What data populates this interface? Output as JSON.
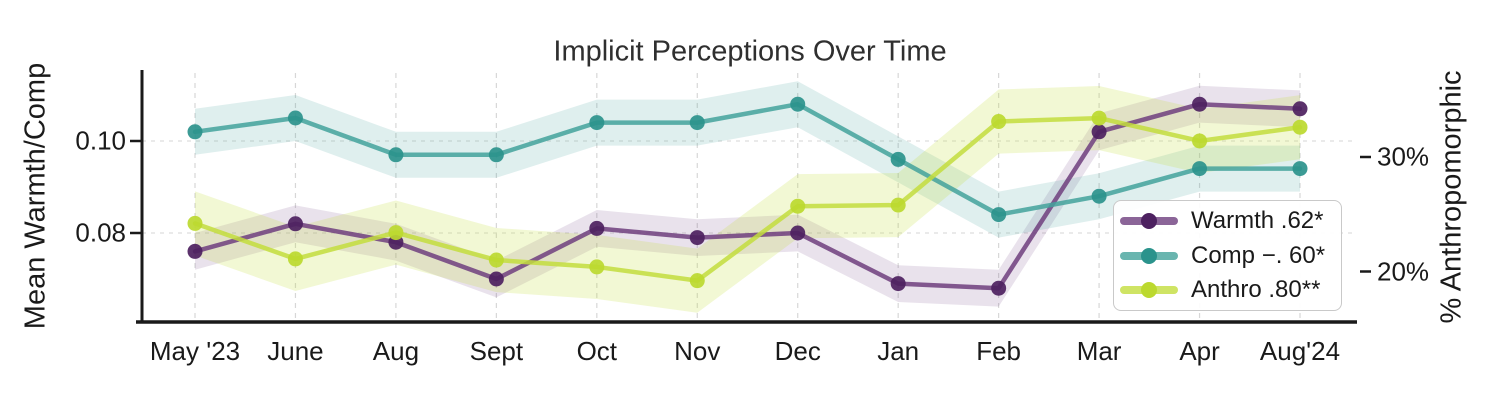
{
  "chart_data": {
    "type": "line",
    "title": "Implicit Perceptions Over Time",
    "categories": [
      "May '23",
      "June",
      "Aug",
      "Sept",
      "Oct",
      "Nov",
      "Dec",
      "Jan",
      "Feb",
      "Mar",
      "Apr",
      "Aug'24"
    ],
    "left_axis": {
      "label": "Mean Warmth/Comp",
      "tick_labels": [
        "0.10",
        "0.08"
      ],
      "tick_values": [
        0.1,
        0.08
      ],
      "range": [
        0.061,
        0.115
      ]
    },
    "right_axis": {
      "label": "% Anthropomorphic",
      "tick_labels": [
        "30%",
        "20%"
      ],
      "tick_values": [
        30,
        20
      ],
      "range": [
        15.6,
        37.6
      ]
    },
    "grid": true,
    "legend_position": "lower-right",
    "series": [
      {
        "name": "Warmth",
        "legend_label": "Warmth .62*",
        "axis": "left",
        "color": "#6e3e7e",
        "marker_color": "#4d2160",
        "band_color": "rgba(110,62,126,0.15)",
        "band_halfwidth": 0.004,
        "values": [
          0.076,
          0.082,
          0.078,
          0.07,
          0.081,
          0.079,
          0.08,
          0.069,
          0.068,
          0.102,
          0.108,
          0.107
        ]
      },
      {
        "name": "Comp",
        "legend_label": "Comp −. 60*",
        "axis": "left",
        "color": "#43a29b",
        "marker_color": "#2b938c",
        "band_color": "rgba(67,162,155,0.17)",
        "band_halfwidth": 0.005,
        "values": [
          0.102,
          0.105,
          0.097,
          0.097,
          0.104,
          0.104,
          0.108,
          0.096,
          0.084,
          0.088,
          0.094,
          0.094
        ]
      },
      {
        "name": "Anthro",
        "legend_label": "Anthro .80**",
        "axis": "right",
        "color": "#c3dd3d",
        "marker_color": "#bcd92f",
        "band_color": "rgba(195,221,61,0.22)",
        "band_halfwidth": 2.8,
        "values": [
          24.2,
          21.1,
          23.4,
          21.0,
          20.4,
          19.2,
          25.7,
          25.8,
          33.1,
          33.4,
          31.4,
          32.6
        ]
      }
    ]
  }
}
